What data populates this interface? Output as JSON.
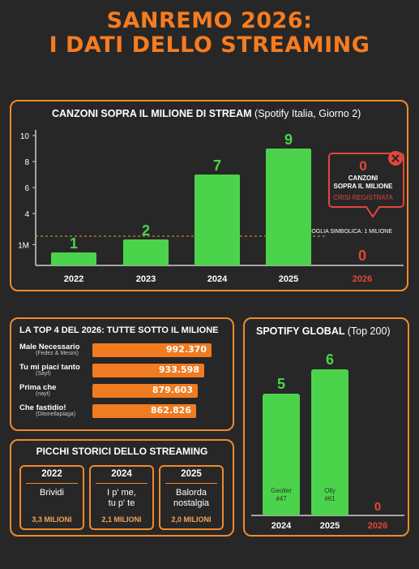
{
  "header": {
    "line1": "SANREMO 2026:",
    "line2": "I DATI DELLO STREAMING"
  },
  "colors": {
    "green": "#4cd34c",
    "orange": "#f08a2c",
    "red": "#e2463c",
    "background": "#272727"
  },
  "chart_data": [
    {
      "type": "bar",
      "title": "CANZONI SOPRA IL MILIONE DI STREAM",
      "subtitle": "(Spotify Italia, Giorno 2)",
      "categories": [
        "2022",
        "2023",
        "2024",
        "2025",
        "2026"
      ],
      "values": [
        1,
        2,
        7,
        9,
        0
      ],
      "y_ticks": [
        "10",
        "8",
        "6",
        "4",
        "1M"
      ],
      "threshold_label": "SOGLIA SIMBOLICA: 1 MILIONE",
      "callout": {
        "value": "0",
        "line1": "CANZONI",
        "line2": "SOPRA IL MILIONE",
        "line3": "CRISI REGISTRATA"
      }
    },
    {
      "type": "bar",
      "title": "LA TOP 4 DEL 2026: TUTTE SOTTO IL MILIONE",
      "rows": [
        {
          "song": "Male Necessario",
          "artist": "(Fedez & Mesini)",
          "value": 992370,
          "label": "992.370"
        },
        {
          "song": "Tu mi piaci tanto",
          "artist": "(Sayf)",
          "value": 933598,
          "label": "933.598"
        },
        {
          "song": "Prima che",
          "artist": "(nayt)",
          "value": 879603,
          "label": "879.603"
        },
        {
          "song": "Che fastidio!",
          "artist": "(Ditonellapiaga)",
          "value": 862826,
          "label": "862.826"
        }
      ]
    },
    {
      "type": "bar",
      "title": "SPOTIFY GLOBAL",
      "subtitle": "(Top 200)",
      "categories": [
        "2024",
        "2025",
        "2026"
      ],
      "values": [
        5,
        6,
        0
      ],
      "bar_labels": [
        "Geolier\n#47",
        "Olly\n#61",
        ""
      ]
    }
  ],
  "picchi": {
    "title": "PICCHI STORICI DELLO STREAMING",
    "items": [
      {
        "year": "2022",
        "song": "Brividi",
        "peak": "3,3 MILIONI"
      },
      {
        "year": "2024",
        "song": "I p' me,\ntu p' te",
        "peak": "2,1 MILIONI"
      },
      {
        "year": "2025",
        "song": "Balorda\nnostalgia",
        "peak": "2,0 MILIONI"
      }
    ]
  }
}
